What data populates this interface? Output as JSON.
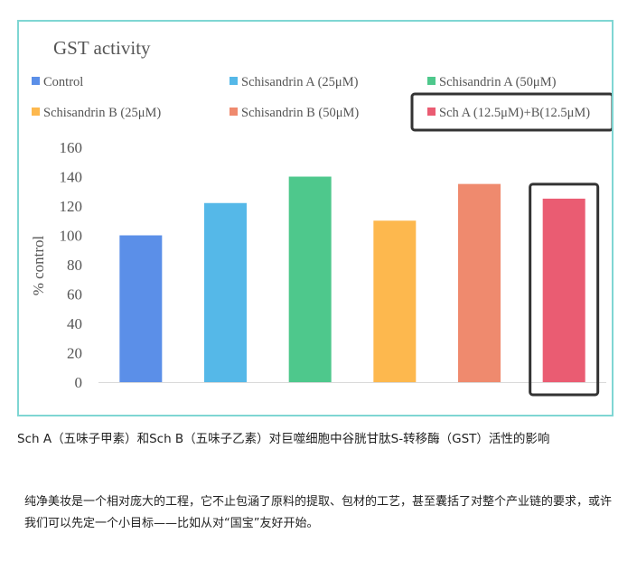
{
  "chart_data": {
    "type": "bar",
    "title": "GST activity",
    "ylabel": "% control",
    "xlabel": "",
    "ylim": [
      0,
      160
    ],
    "yticks": [
      0,
      20,
      40,
      60,
      80,
      100,
      120,
      140,
      160
    ],
    "legend_position": "top",
    "grid": false,
    "series": [
      {
        "name": "Control",
        "value": 100,
        "color": "#5b8fe8"
      },
      {
        "name": "Schisandrin A (25μM)",
        "value": 122,
        "color": "#55b8e8"
      },
      {
        "name": "Schisandrin A (50μM)",
        "value": 140,
        "color": "#4ec88c"
      },
      {
        "name": "Schisandrin B (25μM)",
        "value": 110,
        "color": "#fdb84e"
      },
      {
        "name": "Schisandrin B (50μM)",
        "value": 135,
        "color": "#ef8a6e"
      },
      {
        "name": "Sch A (12.5μM)+B(12.5μM)",
        "value": 125,
        "color": "#ea5c72"
      }
    ],
    "highlighted": "Sch A (12.5μM)+B(12.5μM)"
  },
  "caption": "Sch A（五味子甲素）和Sch B（五味子乙素）对巨噬细胞中谷胱甘肽S-转移酶（GST）活性的影响",
  "body_text": "纯净美妆是一个相对庞大的工程，它不止包涵了原料的提取、包材的工艺，甚至囊括了对整个产业链的要求，或许我们可以先定一个小目标——比如从对“国宝”友好开始。"
}
